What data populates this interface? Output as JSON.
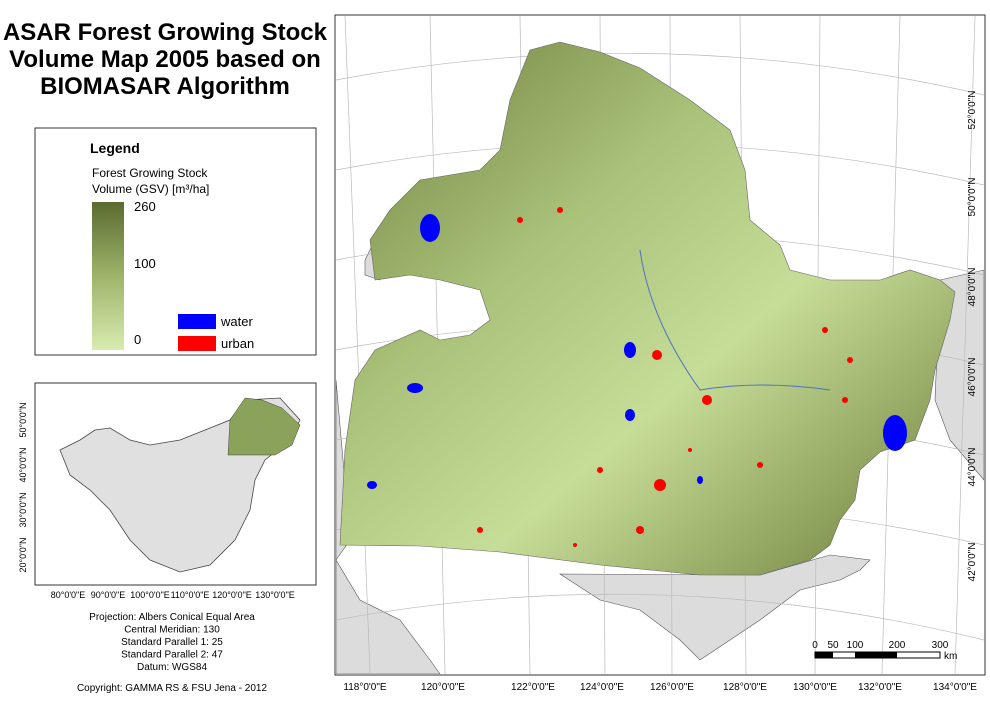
{
  "title_lines": [
    "ASAR Forest Growing Stock",
    "Volume Map 2005 based on",
    "BIOMASAR Algorithm"
  ],
  "legend": {
    "title": "Legend",
    "gsv_label_lines": [
      "Forest Growing Stock",
      "Volume (GSV) [m³/ha]"
    ],
    "ramp_labels": [
      260,
      100,
      0
    ],
    "ramp_colors": [
      "#5b6a30",
      "#9db46a",
      "#d8ecb0"
    ],
    "classes": [
      {
        "label": "water",
        "color": "#0000ff"
      },
      {
        "label": "urban",
        "color": "#ff0000"
      }
    ]
  },
  "inset": {
    "lat_labels": [
      "50°0'0\"N",
      "40°0'0\"N",
      "30°0'0\"N",
      "20°0'0\"N"
    ],
    "lon_labels": [
      "80°0'0\"E",
      "90°0'0\"E",
      "100°0'0\"E",
      "110°0'0\"E",
      "120°0'0\"E",
      "130°0'0\"E"
    ]
  },
  "projection_lines": [
    "Projection: Albers Conical Equal Area",
    "Central Meridian: 130",
    "Standard Parallel 1: 25",
    "Standard Parallel 2: 47",
    "Datum: WGS84"
  ],
  "copyright": "Copyright: GAMMA RS & FSU Jena - 2012",
  "main_map": {
    "lat_labels": [
      "52°0'0\"N",
      "50°0'0\"N",
      "48°0'0\"N",
      "46°0'0\"N",
      "44°0'0\"N",
      "42°0'0\"N"
    ],
    "lon_labels": [
      "118°0'0\"E",
      "120°0'0\"E",
      "122°0'0\"E",
      "124°0'0\"E",
      "126°0'0\"E",
      "128°0'0\"E",
      "130°0'0\"E",
      "132°0'0\"E",
      "134°0'0\"E"
    ],
    "scale_bar": {
      "labels": [
        0,
        50,
        100,
        200,
        300
      ],
      "unit": "km"
    }
  }
}
